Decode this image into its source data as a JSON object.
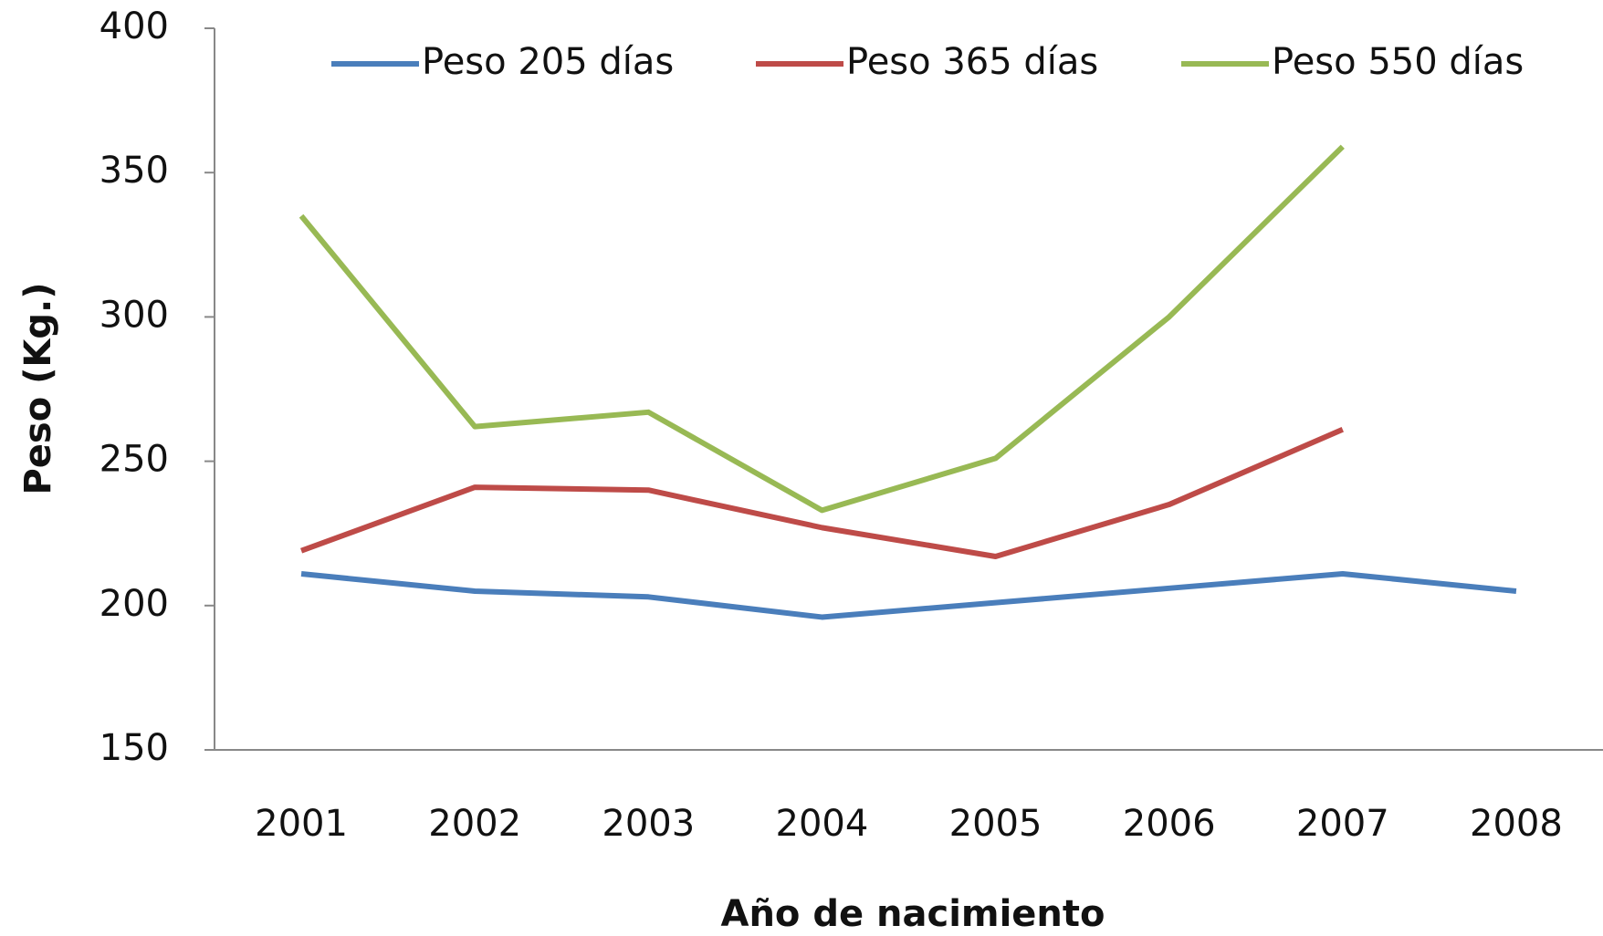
{
  "chart_data": {
    "type": "line",
    "x_label": "Año de nacimiento",
    "y_label": "Peso (Kg.)",
    "categories": [
      "2001",
      "2002",
      "2003",
      "2004",
      "2005",
      "2006",
      "2007",
      "2008"
    ],
    "series": [
      {
        "name": "Peso 205 días",
        "color": "#4a7ebb",
        "values": [
          211,
          205,
          203,
          196,
          201,
          206,
          211,
          205
        ]
      },
      {
        "name": "Peso 365 días",
        "color": "#be4b48",
        "values": [
          219,
          241,
          240,
          227,
          217,
          235,
          261,
          null
        ]
      },
      {
        "name": "Peso 550 días",
        "color": "#98b954",
        "values": [
          335,
          262,
          267,
          233,
          251,
          300,
          359,
          null
        ]
      }
    ],
    "ylim": [
      150,
      400
    ],
    "yticks": [
      150,
      200,
      250,
      300,
      350,
      400
    ],
    "grid": false,
    "legend": "top"
  }
}
